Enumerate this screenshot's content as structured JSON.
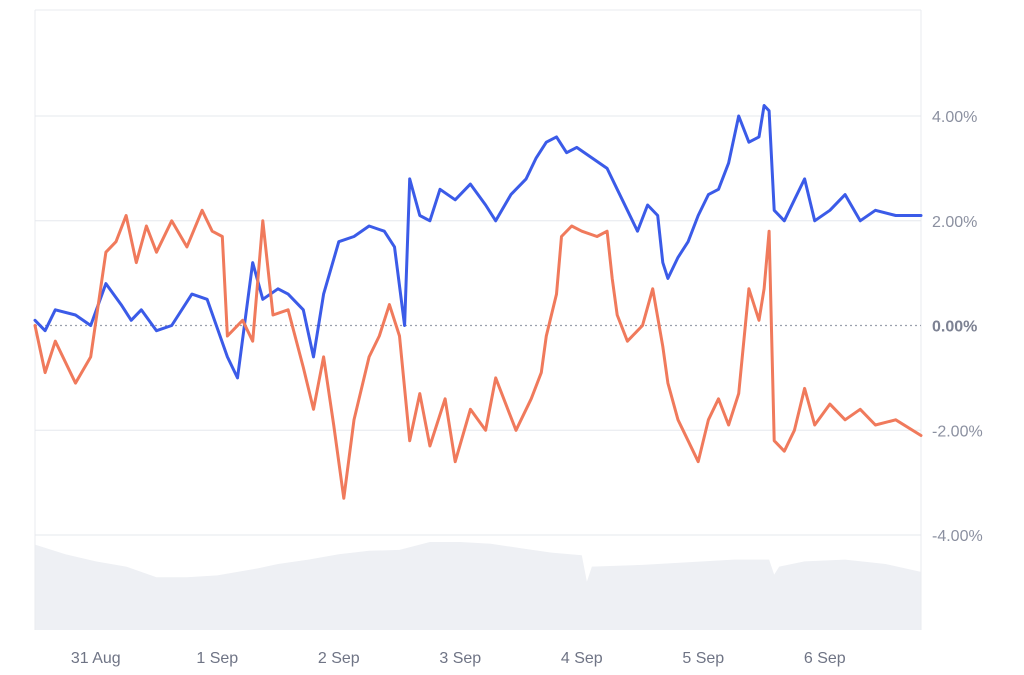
{
  "chart_data": {
    "type": "line",
    "title": "",
    "xlabel": "",
    "ylabel": "",
    "x_range": [
      "2024-08-30T12:00",
      "2024-09-06T19:00"
    ],
    "ylim": [
      -6.0,
      6.0
    ],
    "grid": true,
    "y_axis_position": "right",
    "y_ticks": [
      {
        "value": 4,
        "label": "4.00%"
      },
      {
        "value": 2,
        "label": "2.00%"
      },
      {
        "value": 0,
        "label": "0.00%"
      },
      {
        "value": -2,
        "label": "-2.00%"
      },
      {
        "value": -4,
        "label": "-4.00%"
      }
    ],
    "x_ticks": [
      {
        "date": "2024-08-31T00:00",
        "label": "31 Aug"
      },
      {
        "date": "2024-09-01T00:00",
        "label": "1 Sep"
      },
      {
        "date": "2024-09-02T00:00",
        "label": "2 Sep"
      },
      {
        "date": "2024-09-03T00:00",
        "label": "3 Sep"
      },
      {
        "date": "2024-09-04T00:00",
        "label": "4 Sep"
      },
      {
        "date": "2024-09-05T00:00",
        "label": "5 Sep"
      },
      {
        "date": "2024-09-06T00:00",
        "label": "6 Sep"
      }
    ],
    "series": [
      {
        "color": "#3b5be8",
        "points": [
          [
            "2024-08-30T12:00",
            0.1
          ],
          [
            "2024-08-30T14:00",
            -0.1
          ],
          [
            "2024-08-30T16:00",
            0.3
          ],
          [
            "2024-08-30T20:00",
            0.2
          ],
          [
            "2024-08-30T23:00",
            0.0
          ],
          [
            "2024-08-31T02:00",
            0.8
          ],
          [
            "2024-08-31T05:00",
            0.4
          ],
          [
            "2024-08-31T07:00",
            0.1
          ],
          [
            "2024-08-31T09:00",
            0.3
          ],
          [
            "2024-08-31T12:00",
            -0.1
          ],
          [
            "2024-08-31T15:00",
            0.0
          ],
          [
            "2024-08-31T19:00",
            0.6
          ],
          [
            "2024-08-31T22:00",
            0.5
          ],
          [
            "2024-09-01T02:00",
            -0.6
          ],
          [
            "2024-09-01T04:00",
            -1.0
          ],
          [
            "2024-09-01T07:00",
            1.2
          ],
          [
            "2024-09-01T09:00",
            0.5
          ],
          [
            "2024-09-01T12:00",
            0.7
          ],
          [
            "2024-09-01T14:00",
            0.6
          ],
          [
            "2024-09-01T17:00",
            0.3
          ],
          [
            "2024-09-01T19:00",
            -0.6
          ],
          [
            "2024-09-01T21:00",
            0.6
          ],
          [
            "2024-09-02T00:00",
            1.6
          ],
          [
            "2024-09-02T03:00",
            1.7
          ],
          [
            "2024-09-02T06:00",
            1.9
          ],
          [
            "2024-09-02T09:00",
            1.8
          ],
          [
            "2024-09-02T11:00",
            1.5
          ],
          [
            "2024-09-02T13:00",
            0.0
          ],
          [
            "2024-09-02T14:00",
            2.8
          ],
          [
            "2024-09-02T16:00",
            2.1
          ],
          [
            "2024-09-02T18:00",
            2.0
          ],
          [
            "2024-09-02T20:00",
            2.6
          ],
          [
            "2024-09-02T23:00",
            2.4
          ],
          [
            "2024-09-03T02:00",
            2.7
          ],
          [
            "2024-09-03T05:00",
            2.3
          ],
          [
            "2024-09-03T07:00",
            2.0
          ],
          [
            "2024-09-03T10:00",
            2.5
          ],
          [
            "2024-09-03T13:00",
            2.8
          ],
          [
            "2024-09-03T15:00",
            3.2
          ],
          [
            "2024-09-03T17:00",
            3.5
          ],
          [
            "2024-09-03T19:00",
            3.6
          ],
          [
            "2024-09-03T21:00",
            3.3
          ],
          [
            "2024-09-03T23:00",
            3.4
          ],
          [
            "2024-09-04T02:00",
            3.2
          ],
          [
            "2024-09-04T05:00",
            3.0
          ],
          [
            "2024-09-04T07:00",
            2.6
          ],
          [
            "2024-09-04T09:00",
            2.2
          ],
          [
            "2024-09-04T11:00",
            1.8
          ],
          [
            "2024-09-04T13:00",
            2.3
          ],
          [
            "2024-09-04T15:00",
            2.1
          ],
          [
            "2024-09-04T16:00",
            1.2
          ],
          [
            "2024-09-04T17:00",
            0.9
          ],
          [
            "2024-09-04T19:00",
            1.3
          ],
          [
            "2024-09-04T21:00",
            1.6
          ],
          [
            "2024-09-04T23:00",
            2.1
          ],
          [
            "2024-09-05T01:00",
            2.5
          ],
          [
            "2024-09-05T03:00",
            2.6
          ],
          [
            "2024-09-05T05:00",
            3.1
          ],
          [
            "2024-09-05T07:00",
            4.0
          ],
          [
            "2024-09-05T09:00",
            3.5
          ],
          [
            "2024-09-05T11:00",
            3.6
          ],
          [
            "2024-09-05T12:00",
            4.2
          ],
          [
            "2024-09-05T13:00",
            4.1
          ],
          [
            "2024-09-05T14:00",
            2.2
          ],
          [
            "2024-09-05T16:00",
            2.0
          ],
          [
            "2024-09-05T18:00",
            2.4
          ],
          [
            "2024-09-05T20:00",
            2.8
          ],
          [
            "2024-09-05T22:00",
            2.0
          ],
          [
            "2024-09-06T01:00",
            2.2
          ],
          [
            "2024-09-06T04:00",
            2.5
          ],
          [
            "2024-09-06T07:00",
            2.0
          ],
          [
            "2024-09-06T10:00",
            2.2
          ],
          [
            "2024-09-06T14:00",
            2.1
          ],
          [
            "2024-09-06T19:00",
            2.1
          ]
        ]
      },
      {
        "color": "#f07a5c",
        "points": [
          [
            "2024-08-30T12:00",
            0.0
          ],
          [
            "2024-08-30T14:00",
            -0.9
          ],
          [
            "2024-08-30T16:00",
            -0.3
          ],
          [
            "2024-08-30T20:00",
            -1.1
          ],
          [
            "2024-08-30T23:00",
            -0.6
          ],
          [
            "2024-08-31T02:00",
            1.4
          ],
          [
            "2024-08-31T04:00",
            1.6
          ],
          [
            "2024-08-31T06:00",
            2.1
          ],
          [
            "2024-08-31T08:00",
            1.2
          ],
          [
            "2024-08-31T10:00",
            1.9
          ],
          [
            "2024-08-31T12:00",
            1.4
          ],
          [
            "2024-08-31T15:00",
            2.0
          ],
          [
            "2024-08-31T18:00",
            1.5
          ],
          [
            "2024-08-31T21:00",
            2.2
          ],
          [
            "2024-08-31T23:00",
            1.8
          ],
          [
            "2024-09-01T01:00",
            1.7
          ],
          [
            "2024-09-01T02:00",
            -0.2
          ],
          [
            "2024-09-01T05:00",
            0.1
          ],
          [
            "2024-09-01T07:00",
            -0.3
          ],
          [
            "2024-09-01T09:00",
            2.0
          ],
          [
            "2024-09-01T11:00",
            0.2
          ],
          [
            "2024-09-01T14:00",
            0.3
          ],
          [
            "2024-09-01T17:00",
            -0.8
          ],
          [
            "2024-09-01T19:00",
            -1.6
          ],
          [
            "2024-09-01T21:00",
            -0.6
          ],
          [
            "2024-09-01T23:00",
            -1.9
          ],
          [
            "2024-09-02T01:00",
            -3.3
          ],
          [
            "2024-09-02T03:00",
            -1.8
          ],
          [
            "2024-09-02T06:00",
            -0.6
          ],
          [
            "2024-09-02T08:00",
            -0.2
          ],
          [
            "2024-09-02T10:00",
            0.4
          ],
          [
            "2024-09-02T12:00",
            -0.2
          ],
          [
            "2024-09-02T14:00",
            -2.2
          ],
          [
            "2024-09-02T16:00",
            -1.3
          ],
          [
            "2024-09-02T18:00",
            -2.3
          ],
          [
            "2024-09-02T21:00",
            -1.4
          ],
          [
            "2024-09-02T23:00",
            -2.6
          ],
          [
            "2024-09-03T02:00",
            -1.6
          ],
          [
            "2024-09-03T05:00",
            -2.0
          ],
          [
            "2024-09-03T07:00",
            -1.0
          ],
          [
            "2024-09-03T09:00",
            -1.5
          ],
          [
            "2024-09-03T11:00",
            -2.0
          ],
          [
            "2024-09-03T14:00",
            -1.4
          ],
          [
            "2024-09-03T16:00",
            -0.9
          ],
          [
            "2024-09-03T17:00",
            -0.2
          ],
          [
            "2024-09-03T19:00",
            0.6
          ],
          [
            "2024-09-03T20:00",
            1.7
          ],
          [
            "2024-09-03T22:00",
            1.9
          ],
          [
            "2024-09-04T00:00",
            1.8
          ],
          [
            "2024-09-04T03:00",
            1.7
          ],
          [
            "2024-09-04T05:00",
            1.8
          ],
          [
            "2024-09-04T06:00",
            0.9
          ],
          [
            "2024-09-04T07:00",
            0.2
          ],
          [
            "2024-09-04T09:00",
            -0.3
          ],
          [
            "2024-09-04T12:00",
            0.0
          ],
          [
            "2024-09-04T14:00",
            0.7
          ],
          [
            "2024-09-04T16:00",
            -0.4
          ],
          [
            "2024-09-04T17:00",
            -1.1
          ],
          [
            "2024-09-04T19:00",
            -1.8
          ],
          [
            "2024-09-04T21:00",
            -2.2
          ],
          [
            "2024-09-04T23:00",
            -2.6
          ],
          [
            "2024-09-05T01:00",
            -1.8
          ],
          [
            "2024-09-05T03:00",
            -1.4
          ],
          [
            "2024-09-05T05:00",
            -1.9
          ],
          [
            "2024-09-05T07:00",
            -1.3
          ],
          [
            "2024-09-05T09:00",
            0.7
          ],
          [
            "2024-09-05T11:00",
            0.1
          ],
          [
            "2024-09-05T12:00",
            0.7
          ],
          [
            "2024-09-05T13:00",
            1.8
          ],
          [
            "2024-09-05T14:00",
            -2.2
          ],
          [
            "2024-09-05T16:00",
            -2.4
          ],
          [
            "2024-09-05T18:00",
            -2.0
          ],
          [
            "2024-09-05T20:00",
            -1.2
          ],
          [
            "2024-09-05T22:00",
            -1.9
          ],
          [
            "2024-09-06T01:00",
            -1.5
          ],
          [
            "2024-09-06T04:00",
            -1.8
          ],
          [
            "2024-09-06T07:00",
            -1.6
          ],
          [
            "2024-09-06T10:00",
            -1.9
          ],
          [
            "2024-09-06T14:00",
            -1.8
          ],
          [
            "2024-09-06T19:00",
            -2.1
          ]
        ]
      }
    ],
    "volume": {
      "color": "#eef0f4",
      "points": [
        [
          "2024-08-30T12:00",
          0.97
        ],
        [
          "2024-08-30T18:00",
          0.86
        ],
        [
          "2024-08-31T00:00",
          0.78
        ],
        [
          "2024-08-31T06:00",
          0.72
        ],
        [
          "2024-08-31T12:00",
          0.6
        ],
        [
          "2024-08-31T18:00",
          0.6
        ],
        [
          "2024-09-01T00:00",
          0.62
        ],
        [
          "2024-09-01T08:00",
          0.7
        ],
        [
          "2024-09-01T12:00",
          0.75
        ],
        [
          "2024-09-01T18:00",
          0.8
        ],
        [
          "2024-09-02T00:00",
          0.86
        ],
        [
          "2024-09-02T06:00",
          0.9
        ],
        [
          "2024-09-02T12:00",
          0.91
        ],
        [
          "2024-09-02T18:00",
          1.0
        ],
        [
          "2024-09-03T00:00",
          1.0
        ],
        [
          "2024-09-03T06:00",
          0.98
        ],
        [
          "2024-09-03T12:00",
          0.93
        ],
        [
          "2024-09-03T18:00",
          0.88
        ],
        [
          "2024-09-04T00:00",
          0.85
        ],
        [
          "2024-09-04T01:00",
          0.55
        ],
        [
          "2024-09-04T02:00",
          0.72
        ],
        [
          "2024-09-04T12:00",
          0.74
        ],
        [
          "2024-09-04T18:00",
          0.76
        ],
        [
          "2024-09-05T00:00",
          0.78
        ],
        [
          "2024-09-05T06:00",
          0.8
        ],
        [
          "2024-09-05T13:00",
          0.8
        ],
        [
          "2024-09-05T14:00",
          0.63
        ],
        [
          "2024-09-05T15:00",
          0.72
        ],
        [
          "2024-09-05T20:00",
          0.78
        ],
        [
          "2024-09-06T04:00",
          0.8
        ],
        [
          "2024-09-06T12:00",
          0.75
        ],
        [
          "2024-09-06T19:00",
          0.66
        ]
      ]
    }
  }
}
